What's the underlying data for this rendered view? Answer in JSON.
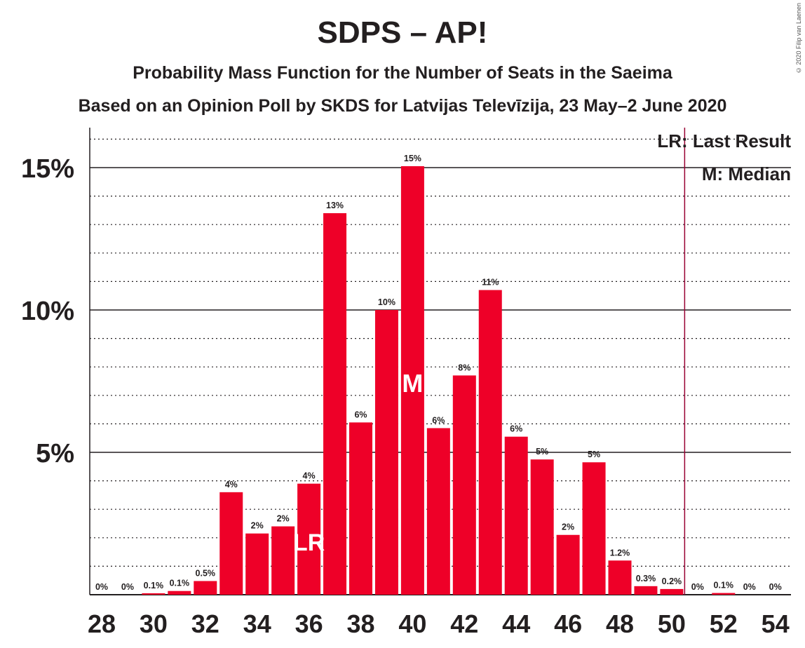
{
  "title": "SDPS – AP!",
  "subtitle": "Probability Mass Function for the Number of Seats in the Saeima",
  "subtitle2": "Based on an Opinion Poll by SKDS for Latvijas Televīzija, 23 May–2 June 2020",
  "copyright": "© 2020 Filip van Laenen",
  "legend": {
    "last_result": "LR: Last Result",
    "median": "M: Median"
  },
  "colors": {
    "bar": "#ee0028",
    "text": "#231f20",
    "marker_line": "#990033"
  },
  "chart_data": {
    "type": "bar",
    "title": "SDPS – AP!",
    "xlabel": "",
    "ylabel": "",
    "x": [
      28,
      29,
      30,
      31,
      32,
      33,
      34,
      35,
      36,
      37,
      38,
      39,
      40,
      41,
      42,
      43,
      44,
      45,
      46,
      47,
      48,
      49,
      50,
      51,
      52,
      53,
      54
    ],
    "values": [
      0,
      0,
      0.05,
      0.13,
      0.48,
      3.6,
      2.15,
      2.4,
      3.9,
      13.4,
      6.05,
      10,
      15.05,
      5.85,
      7.7,
      10.7,
      5.55,
      4.75,
      2.1,
      4.65,
      1.2,
      0.3,
      0.2,
      0,
      0.06,
      0,
      0
    ],
    "data_labels": [
      "0%",
      "0%",
      "0.1%",
      "0.1%",
      "0.5%",
      "4%",
      "2%",
      "2%",
      "4%",
      "13%",
      "6%",
      "10%",
      "15%",
      "6%",
      "8%",
      "11%",
      "6%",
      "5%",
      "2%",
      "5%",
      "1.2%",
      "0.3%",
      "0.2%",
      "0%",
      "0.1%",
      "0%",
      "0%"
    ],
    "x_ticks": [
      28,
      30,
      32,
      34,
      36,
      38,
      40,
      42,
      44,
      46,
      48,
      50,
      52,
      54
    ],
    "y_ticks": [
      {
        "value": 5,
        "label": "5%"
      },
      {
        "value": 10,
        "label": "10%"
      },
      {
        "value": 15,
        "label": "15%"
      }
    ],
    "ylim": [
      0,
      16.5
    ],
    "last_result_seat": 36,
    "last_result_label": "LR",
    "median_seat": 40,
    "median_label": "M",
    "majority_line_x": 50.5,
    "grid": true,
    "legend_position": "top-right"
  }
}
